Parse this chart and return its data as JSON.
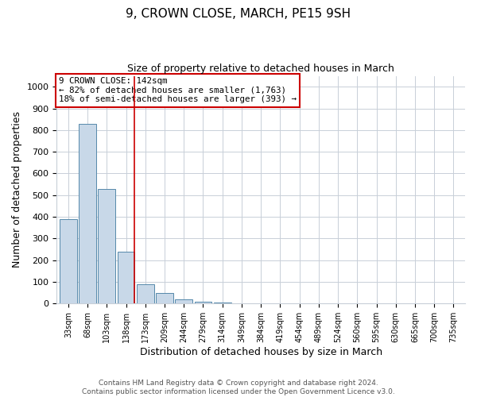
{
  "title1": "9, CROWN CLOSE, MARCH, PE15 9SH",
  "title2": "Size of property relative to detached houses in March",
  "xlabel": "Distribution of detached houses by size in March",
  "ylabel": "Number of detached properties",
  "annotation_line1": "9 CROWN CLOSE: 142sqm",
  "annotation_line2": "← 82% of detached houses are smaller (1,763)",
  "annotation_line3": "18% of semi-detached houses are larger (393) →",
  "categories": [
    "33sqm",
    "68sqm",
    "103sqm",
    "138sqm",
    "173sqm",
    "209sqm",
    "244sqm",
    "279sqm",
    "314sqm",
    "349sqm",
    "384sqm",
    "419sqm",
    "454sqm",
    "489sqm",
    "524sqm",
    "560sqm",
    "595sqm",
    "630sqm",
    "665sqm",
    "700sqm",
    "735sqm"
  ],
  "values": [
    390,
    830,
    530,
    240,
    90,
    50,
    20,
    10,
    5,
    3,
    2,
    1,
    0,
    0,
    0,
    0,
    0,
    0,
    0,
    0,
    0
  ],
  "bar_color": "#c8d8e8",
  "bar_edge_color": "#5588aa",
  "vline_index": 3,
  "vline_color": "#cc0000",
  "ylim": [
    0,
    1050
  ],
  "yticks": [
    0,
    100,
    200,
    300,
    400,
    500,
    600,
    700,
    800,
    900,
    1000
  ],
  "background_color": "#ffffff",
  "grid_color": "#c8cfd8",
  "annotation_box_color": "#ffffff",
  "annotation_box_edgecolor": "#cc0000",
  "footer1": "Contains HM Land Registry data © Crown copyright and database right 2024.",
  "footer2": "Contains public sector information licensed under the Open Government Licence v3.0."
}
